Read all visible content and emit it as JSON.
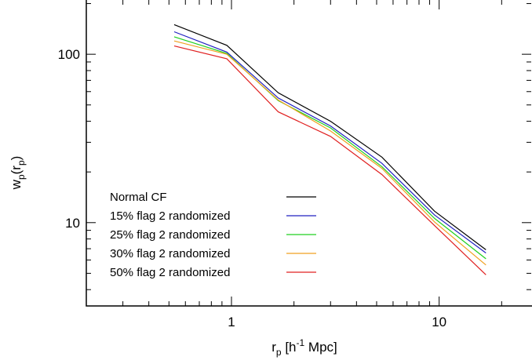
{
  "chart_data": {
    "type": "line",
    "xscale": "log",
    "yscale": "log",
    "xlim": [
      0.2,
      28
    ],
    "ylim": [
      3.2,
      210
    ],
    "xticks": [
      1,
      10
    ],
    "xtick_labels": [
      "1",
      "10"
    ],
    "yticks": [
      10,
      100
    ],
    "ytick_labels": [
      "10",
      "100"
    ],
    "xlabel": {
      "base": "r",
      "sub": "p",
      "open": " [h",
      "sup": "-1",
      "close": " Mpc]"
    },
    "ylabel": {
      "base": "w",
      "sub1": "p",
      "open": "(r",
      "sub2": "p",
      "close": ")"
    },
    "grid": false,
    "legend_position": "lower-left",
    "x": [
      0.53,
      0.95,
      1.68,
      3.0,
      5.3,
      9.5,
      16.8
    ],
    "series": [
      {
        "name": "Normal CF",
        "color": "#000000",
        "values": [
          150,
          113,
          59,
          40,
          24.5,
          11.7,
          6.9
        ]
      },
      {
        "name": "15% flag 2 randomized",
        "color": "#2020c0",
        "values": [
          136,
          103,
          55,
          37.5,
          22.5,
          11.1,
          6.6
        ]
      },
      {
        "name": "25% flag 2 randomized",
        "color": "#20d020",
        "values": [
          127,
          101,
          53,
          36.5,
          21.5,
          10.6,
          6.1
        ]
      },
      {
        "name": "30% flag 2 randomized",
        "color": "#f0a020",
        "values": [
          120,
          100,
          53.5,
          35,
          21,
          10.1,
          5.6
        ]
      },
      {
        "name": "50% flag 2 randomized",
        "color": "#e02020",
        "values": [
          112,
          94,
          45.5,
          32.5,
          19.3,
          9.6,
          4.9
        ]
      }
    ]
  }
}
